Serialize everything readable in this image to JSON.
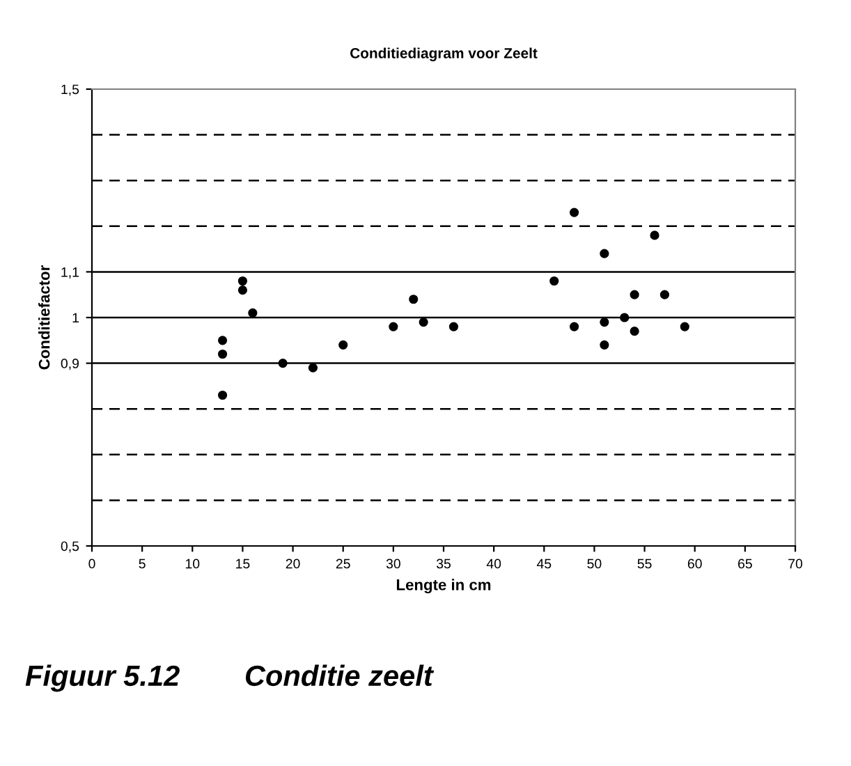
{
  "chart_data": {
    "type": "scatter",
    "title": "Conditiediagram voor Zeelt",
    "xlabel": "Lengte in cm",
    "ylabel": "Conditiefactor",
    "x": [
      13,
      13,
      13,
      15,
      15,
      16,
      19,
      22,
      25,
      30,
      32,
      33,
      36,
      46,
      48,
      48,
      51,
      51,
      51,
      53,
      54,
      54,
      56,
      57,
      59
    ],
    "series": [
      {
        "color": "#000000",
        "values": [
          0.95,
          0.92,
          0.83,
          1.08,
          1.06,
          1.01,
          0.9,
          0.89,
          0.94,
          0.98,
          1.04,
          0.99,
          0.98,
          1.08,
          1.23,
          0.98,
          1.14,
          0.99,
          0.94,
          1.0,
          1.05,
          0.97,
          1.18,
          1.05,
          0.98
        ]
      }
    ],
    "marker": "circle",
    "grid": false,
    "legend": false,
    "xlim": [
      0,
      70
    ],
    "xticks": [
      0,
      5,
      10,
      15,
      20,
      25,
      30,
      35,
      40,
      45,
      50,
      55,
      60,
      65,
      70
    ],
    "ylim": [
      0.5,
      1.5
    ],
    "yticks": [
      {
        "value": 0.5,
        "label": "0,5"
      },
      {
        "value": 0.9,
        "label": "0,9"
      },
      {
        "value": 1,
        "label": "1"
      },
      {
        "value": 1.1,
        "label": "1,1"
      },
      {
        "value": 1.5,
        "label": "1,5"
      }
    ],
    "ref_lines": [
      {
        "axis": "y",
        "value": 0.6,
        "line_style": "dashed",
        "color": "#000000"
      },
      {
        "axis": "y",
        "value": 0.7,
        "line_style": "dashed",
        "color": "#000000"
      },
      {
        "axis": "y",
        "value": 0.8,
        "line_style": "dashed",
        "color": "#000000"
      },
      {
        "axis": "y",
        "value": 0.9,
        "line_style": "solid",
        "color": "#000000"
      },
      {
        "axis": "y",
        "value": 1.0,
        "line_style": "solid",
        "color": "#000000"
      },
      {
        "axis": "y",
        "value": 1.1,
        "line_style": "solid",
        "color": "#000000"
      },
      {
        "axis": "y",
        "value": 1.2,
        "line_style": "dashed",
        "color": "#000000"
      },
      {
        "axis": "y",
        "value": 1.3,
        "line_style": "dashed",
        "color": "#000000"
      },
      {
        "axis": "y",
        "value": 1.4,
        "line_style": "dashed",
        "color": "#000000"
      }
    ],
    "annotations": [
      "Figuur 5.12        Conditie zeelt"
    ]
  }
}
